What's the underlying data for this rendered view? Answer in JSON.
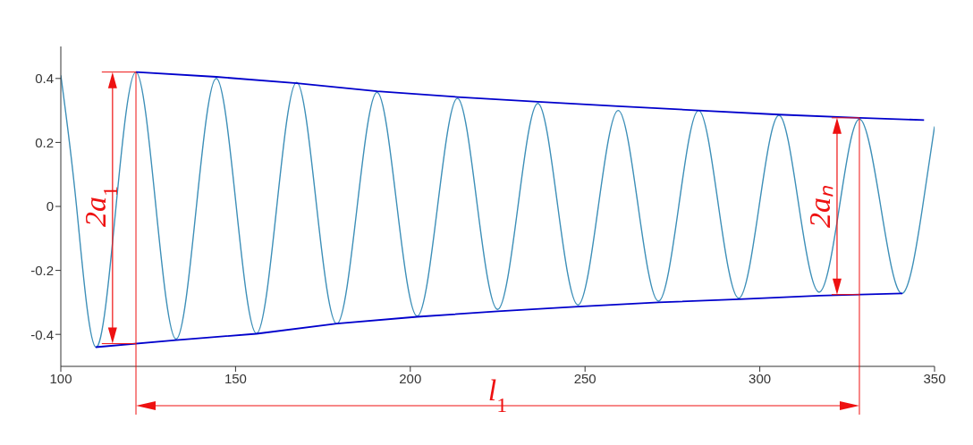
{
  "chart_data": {
    "type": "line",
    "xlim": [
      100,
      350
    ],
    "xticks": [
      100,
      150,
      200,
      250,
      300,
      350
    ],
    "ylim": [
      -0.5,
      0.5
    ],
    "yticks": [
      -0.4,
      -0.2,
      0,
      0.2,
      0.4
    ],
    "ref_lines": [
      {
        "axis": "x",
        "value": 121.5,
        "color": "#ee1111"
      },
      {
        "axis": "x",
        "value": 328.5,
        "color": "#ee1111"
      }
    ],
    "series": [
      {
        "color": "#3d8fb8",
        "x": [
          100,
          104.5,
          110,
          115.8,
          121.5,
          127.2,
          133,
          138.8,
          144.5,
          150.2,
          156,
          161.8,
          167.5,
          173.2,
          179,
          184.8,
          190.5,
          196.2,
          202,
          207.8,
          213.5,
          219.2,
          225,
          230.8,
          236.5,
          242.2,
          248,
          253.8,
          259.5,
          265.2,
          271,
          276.8,
          282.5,
          288.2,
          294,
          299.8,
          305.5,
          311.2,
          317,
          322.8,
          328.5,
          334.6,
          340.8,
          346.6,
          350
        ],
        "values": [
          0.41,
          0,
          -0.44,
          0,
          0.42,
          0,
          -0.415,
          0,
          0.4,
          0,
          -0.397,
          0,
          0.388,
          0,
          -0.367,
          0,
          0.357,
          0,
          -0.343,
          0,
          0.338,
          0,
          -0.322,
          0,
          0.322,
          0,
          -0.308,
          0,
          0.3,
          0,
          -0.296,
          0,
          0.3,
          0,
          -0.287,
          0,
          0.285,
          0,
          -0.268,
          0,
          0.273,
          0,
          -0.272,
          0,
          0.25
        ]
      },
      {
        "type": "line",
        "color": "#0000cc",
        "x": [
          121.5,
          144.5,
          167.5,
          190.5,
          213.5,
          236.5,
          259.5,
          282.5,
          305.5,
          328.5,
          347
        ],
        "values": [
          0.42,
          0.405,
          0.385,
          0.36,
          0.342,
          0.327,
          0.313,
          0.3,
          0.287,
          0.277,
          0.27
        ]
      },
      {
        "type": "line",
        "color": "#0000cc",
        "x": [
          110,
          133,
          156,
          179,
          202,
          225,
          248,
          271,
          294,
          317,
          340.8
        ],
        "values": [
          -0.44,
          -0.418,
          -0.398,
          -0.366,
          -0.345,
          -0.328,
          -0.313,
          -0.3,
          -0.29,
          -0.279,
          -0.272
        ]
      }
    ],
    "annotations": [
      {
        "text": "2a$_{1}$",
        "x": 114.8,
        "y": 0
      },
      {
        "text": "2aₙ",
        "x": 322.1,
        "y": 0
      },
      "l$_{1}$"
    ]
  }
}
